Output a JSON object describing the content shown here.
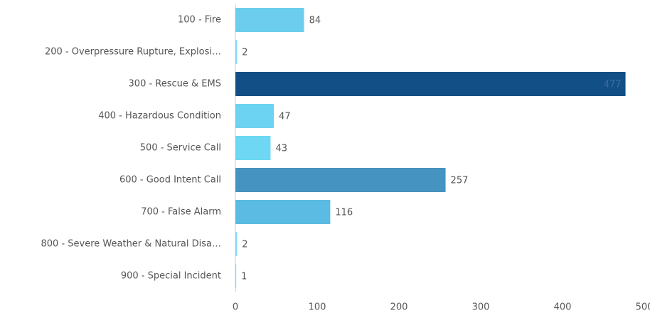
{
  "chart_data": {
    "type": "bar",
    "orientation": "horizontal",
    "categories": [
      "100 - Fire",
      "200 - Overpressure Rupture, Explosi…",
      "300 - Rescue & EMS",
      "400 - Hazardous Condition",
      "500 - Service Call",
      "600 - Good Intent Call",
      "700 - False Alarm",
      "800 - Severe Weather & Natural Disa…",
      "900 - Special Incident"
    ],
    "values": [
      84,
      2,
      477,
      47,
      43,
      257,
      116,
      2,
      1
    ],
    "colors": [
      "#6ccdee",
      "#7fd9f5",
      "#134f87",
      "#6dd3f2",
      "#6dd7f4",
      "#4493c1",
      "#5bbbe3",
      "#7fd9f5",
      "#7fd9f5"
    ],
    "xlim": [
      0,
      500
    ],
    "xticks": [
      0,
      100,
      200,
      300,
      400,
      500
    ],
    "grid": false
  }
}
